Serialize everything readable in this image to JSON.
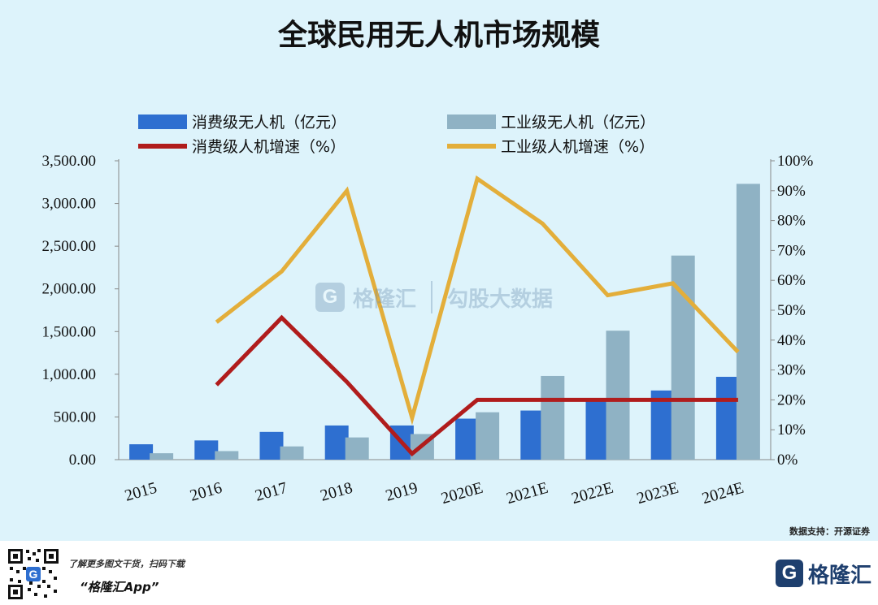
{
  "title": "全球民用无人机市场规模",
  "source": "数据支持：开源证券",
  "footer": {
    "promo_line1": "了解更多图文干货，扫码下载",
    "promo_line2": "“格隆汇App”",
    "brand_name": "格隆汇",
    "brand_letter": "G"
  },
  "watermark": {
    "brand_1": "格隆汇",
    "brand_2": "勾股大数据"
  },
  "colors": {
    "consumer_bar": "#2e6fd0",
    "industrial_bar": "#8fb2c4",
    "consumer_line": "#b01c1c",
    "industrial_line": "#e3ae3a"
  },
  "chart_data": {
    "type": "bar",
    "title": "全球民用无人机市场规模",
    "categories": [
      "2015",
      "2016",
      "2017",
      "2018",
      "2019",
      "2020E",
      "2021E",
      "2022E",
      "2023E",
      "2024E"
    ],
    "series": [
      {
        "name": "消费级无人机（亿元）",
        "type": "bar",
        "axis": "left",
        "values": [
          180,
          225,
          325,
          400,
          400,
          480,
          575,
          700,
          810,
          970
        ]
      },
      {
        "name": "工业级无人机（亿元）",
        "type": "bar",
        "axis": "left",
        "values": [
          75,
          100,
          155,
          260,
          300,
          555,
          980,
          1510,
          2390,
          3230
        ]
      },
      {
        "name": "消费级人机增速（%）",
        "type": "line",
        "axis": "right",
        "values": [
          null,
          25,
          47.5,
          26,
          2,
          20,
          20,
          20,
          20,
          20
        ]
      },
      {
        "name": "工业级人机增速（%）",
        "type": "line",
        "axis": "right",
        "values": [
          null,
          46,
          63,
          90,
          14,
          94,
          79,
          55,
          59,
          36
        ]
      }
    ],
    "left_axis": {
      "ylim": [
        0,
        3500
      ],
      "ticks": [
        "0.00",
        "500.00",
        "1,000.00",
        "1,500.00",
        "2,000.00",
        "2,500.00",
        "3,000.00",
        "3,500.00"
      ]
    },
    "right_axis": {
      "ylim": [
        0,
        100
      ],
      "ticks": [
        "0%",
        "10%",
        "20%",
        "30%",
        "40%",
        "50%",
        "60%",
        "70%",
        "80%",
        "90%",
        "100%"
      ]
    },
    "legend_position": "top"
  }
}
